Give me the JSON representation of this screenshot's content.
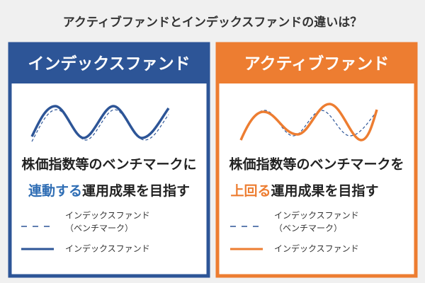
{
  "title": "アクティブファンドとインデックスファンドの違いは？",
  "panels": [
    {
      "header": "インデックスファンド",
      "description": {
        "line1": "株価指数等のベンチマークに",
        "highlight": "連動する",
        "rest": "運用成果を目指す"
      },
      "legend": {
        "dashed": [
          "インデックスファンド",
          "（ベンチマーク）"
        ],
        "solid": "インデックスファンド"
      }
    },
    {
      "header": "アクティブファンド",
      "description": {
        "line1": "株価指数等のベンチマークを",
        "highlight": "上回る",
        "rest": "運用成果を目指す"
      },
      "legend": {
        "dashed": [
          "インデックスファンド",
          "（ベンチマーク）"
        ],
        "solid": "インデックスファンド"
      }
    }
  ]
}
